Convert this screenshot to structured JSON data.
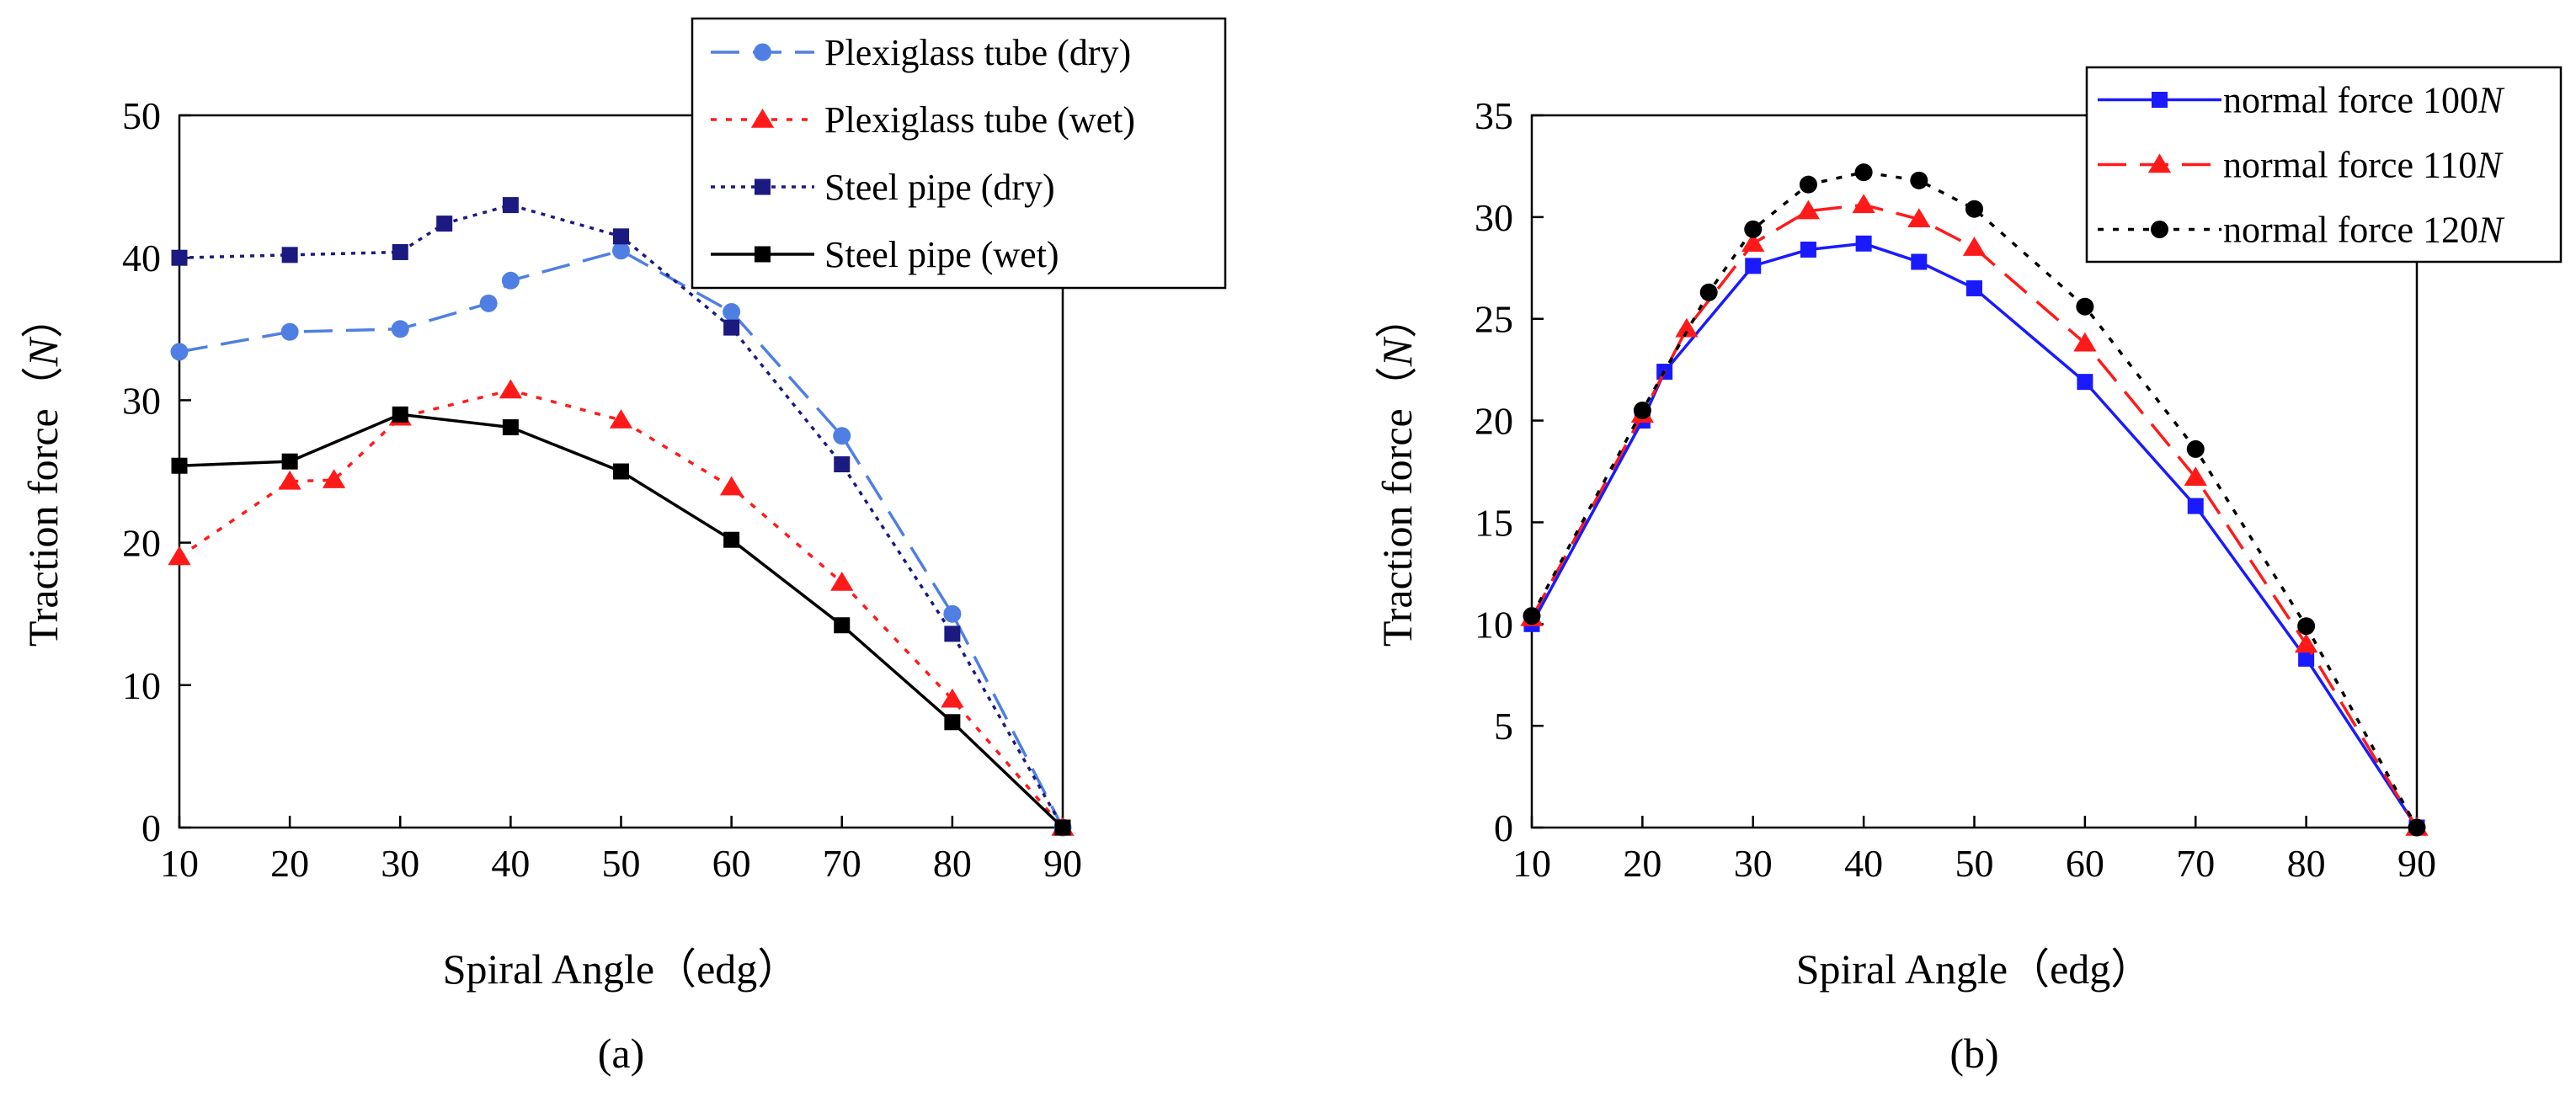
{
  "chart_data": [
    {
      "type": "line",
      "panel_label": "(a)",
      "xlabel": "Spiral Angle（edg）",
      "ylabel_prefix": "Traction force（",
      "ylabel_unit": "N",
      "ylabel_suffix": "）",
      "xlim": [
        10,
        90
      ],
      "ylim": [
        0,
        50
      ],
      "xticks": [
        10,
        20,
        30,
        40,
        50,
        60,
        70,
        80,
        90
      ],
      "yticks": [
        0,
        10,
        20,
        30,
        40,
        50
      ],
      "legend_position": "top-right",
      "series": [
        {
          "name": "Plexiglass tube (dry)",
          "color": "#4f7fe3",
          "dash": "dashed",
          "marker": "circle",
          "points": [
            [
              10,
              33.4
            ],
            [
              20,
              34.8
            ],
            [
              30,
              35.0
            ],
            [
              38,
              36.8
            ],
            [
              40,
              38.4
            ],
            [
              50,
              40.5
            ],
            [
              60,
              36.2
            ],
            [
              70,
              27.5
            ],
            [
              80,
              15.0
            ],
            [
              90,
              0
            ]
          ]
        },
        {
          "name": "Plexiglass tube (wet)",
          "color": "#ff1a1a",
          "dash": "dotted",
          "marker": "triangle",
          "points": [
            [
              10,
              19.0
            ],
            [
              20,
              24.3
            ],
            [
              24,
              24.4
            ],
            [
              30,
              28.8
            ],
            [
              40,
              30.7
            ],
            [
              50,
              28.6
            ],
            [
              60,
              23.9
            ],
            [
              70,
              17.2
            ],
            [
              80,
              9.0
            ],
            [
              90,
              0
            ]
          ]
        },
        {
          "name": "Steel pipe (dry)",
          "color": "#1a1a80",
          "dash": "densedot",
          "marker": "square",
          "points": [
            [
              10,
              40.0
            ],
            [
              20,
              40.2
            ],
            [
              30,
              40.4
            ],
            [
              34,
              42.4
            ],
            [
              40,
              43.7
            ],
            [
              50,
              41.5
            ],
            [
              60,
              35.1
            ],
            [
              70,
              25.5
            ],
            [
              80,
              13.6
            ],
            [
              90,
              0
            ]
          ]
        },
        {
          "name": "Steel pipe (wet)",
          "color": "#000000",
          "dash": "solid",
          "marker": "square",
          "points": [
            [
              10,
              25.4
            ],
            [
              20,
              25.7
            ],
            [
              30,
              29.0
            ],
            [
              40,
              28.1
            ],
            [
              50,
              25.0
            ],
            [
              60,
              20.2
            ],
            [
              70,
              14.2
            ],
            [
              80,
              7.4
            ],
            [
              90,
              0
            ]
          ]
        }
      ]
    },
    {
      "type": "line",
      "panel_label": "(b)",
      "xlabel": "Spiral Angle（edg）",
      "ylabel_prefix": "Traction force（",
      "ylabel_unit": "N",
      "ylabel_suffix": "）",
      "xlim": [
        10,
        90
      ],
      "ylim": [
        0,
        35
      ],
      "xticks": [
        10,
        20,
        30,
        40,
        50,
        60,
        70,
        80,
        90
      ],
      "yticks": [
        0,
        5,
        10,
        15,
        20,
        25,
        30,
        35
      ],
      "legend_position": "top-right",
      "series": [
        {
          "name": "normal force 100",
          "unit": "N",
          "color": "#1a1aff",
          "dash": "solid",
          "marker": "square",
          "points": [
            [
              10,
              10.0
            ],
            [
              20,
              20.0
            ],
            [
              22,
              22.4
            ],
            [
              30,
              27.6
            ],
            [
              35,
              28.4
            ],
            [
              40,
              28.7
            ],
            [
              45,
              27.8
            ],
            [
              50,
              26.5
            ],
            [
              60,
              21.9
            ],
            [
              70,
              15.8
            ],
            [
              80,
              8.3
            ],
            [
              90,
              0
            ]
          ]
        },
        {
          "name": "normal force 110",
          "unit": "N",
          "color": "#ff1a1a",
          "dash": "dashed",
          "marker": "triangle",
          "points": [
            [
              10,
              10.3
            ],
            [
              20,
              20.3
            ],
            [
              24,
              24.5
            ],
            [
              30,
              28.7
            ],
            [
              35,
              30.3
            ],
            [
              40,
              30.6
            ],
            [
              45,
              29.9
            ],
            [
              50,
              28.5
            ],
            [
              60,
              23.8
            ],
            [
              70,
              17.2
            ],
            [
              80,
              9.0
            ],
            [
              90,
              0
            ]
          ]
        },
        {
          "name": "normal force 120",
          "unit": "N",
          "color": "#000000",
          "dash": "dotted",
          "marker": "circle",
          "points": [
            [
              10,
              10.4
            ],
            [
              20,
              20.5
            ],
            [
              26,
              26.3
            ],
            [
              30,
              29.4
            ],
            [
              35,
              31.6
            ],
            [
              40,
              32.2
            ],
            [
              45,
              31.8
            ],
            [
              50,
              30.4
            ],
            [
              60,
              25.6
            ],
            [
              70,
              18.6
            ],
            [
              80,
              9.9
            ],
            [
              90,
              0
            ]
          ]
        }
      ]
    }
  ]
}
